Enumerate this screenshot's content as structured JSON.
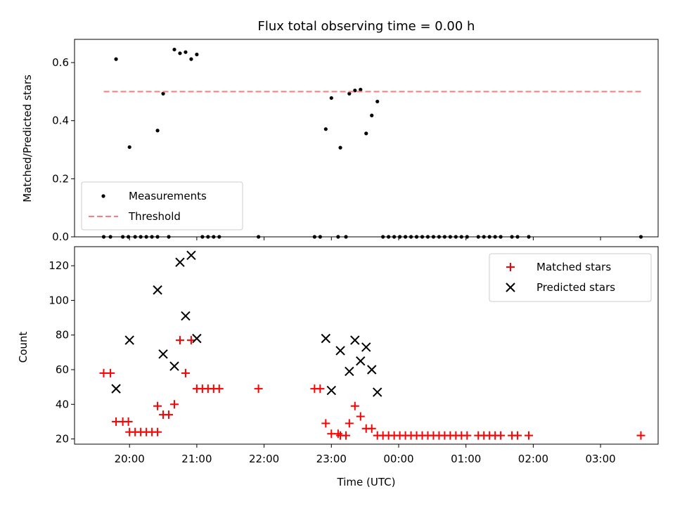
{
  "chart_data": [
    {
      "type": "scatter",
      "title": "Flux total observing time = 0.00 h",
      "xlabel": "",
      "ylabel": "Matched/Predicted stars",
      "ylim": [
        0,
        0.68
      ],
      "yticks": [
        0.0,
        0.2,
        0.4,
        0.6
      ],
      "ytick_labels": [
        "0.0",
        "0.2",
        "0.4",
        "0.6"
      ],
      "grid": false,
      "legend_position": "lower-left",
      "series": [
        {
          "name": "Measurements",
          "marker": "dot",
          "color": "#000000",
          "points": [
            [
              "19:37",
              0
            ],
            [
              "19:43",
              0
            ],
            [
              "19:48",
              0.612
            ],
            [
              "19:54",
              0
            ],
            [
              "19:59",
              0
            ],
            [
              "20:00",
              0.309
            ],
            [
              "20:05",
              0
            ],
            [
              "20:10",
              0
            ],
            [
              "20:15",
              0
            ],
            [
              "20:20",
              0
            ],
            [
              "20:25",
              0
            ],
            [
              "20:25",
              0.366
            ],
            [
              "20:30",
              0.493
            ],
            [
              "20:35",
              0
            ],
            [
              "20:40",
              0.645
            ],
            [
              "20:45",
              0.632
            ],
            [
              "20:50",
              0.636
            ],
            [
              "20:55",
              0.612
            ],
            [
              "21:00",
              0.628
            ],
            [
              "21:05",
              0
            ],
            [
              "21:10",
              0
            ],
            [
              "21:15",
              0
            ],
            [
              "21:20",
              0
            ],
            [
              "21:55",
              0
            ],
            [
              "22:45",
              0
            ],
            [
              "22:50",
              0
            ],
            [
              "22:55",
              0.371
            ],
            [
              "23:00",
              0.478
            ],
            [
              "23:06",
              0
            ],
            [
              "23:08",
              0.307
            ],
            [
              "23:13",
              0
            ],
            [
              "23:16",
              0.493
            ],
            [
              "23:21",
              0.504
            ],
            [
              "23:26",
              0.507
            ],
            [
              "23:31",
              0.356
            ],
            [
              "23:36",
              0.418
            ],
            [
              "23:41",
              0.466
            ],
            [
              "23:46",
              0
            ],
            [
              "23:51",
              0
            ],
            [
              "23:56",
              0
            ],
            [
              "00:01",
              0
            ],
            [
              "00:06",
              0
            ],
            [
              "00:11",
              0
            ],
            [
              "00:16",
              0
            ],
            [
              "00:21",
              0
            ],
            [
              "00:26",
              0
            ],
            [
              "00:31",
              0
            ],
            [
              "00:36",
              0
            ],
            [
              "00:41",
              0
            ],
            [
              "00:46",
              0
            ],
            [
              "00:51",
              0
            ],
            [
              "00:56",
              0
            ],
            [
              "01:01",
              0
            ],
            [
              "01:11",
              0
            ],
            [
              "01:16",
              0
            ],
            [
              "01:21",
              0
            ],
            [
              "01:26",
              0
            ],
            [
              "01:31",
              0
            ],
            [
              "01:41",
              0
            ],
            [
              "01:46",
              0
            ],
            [
              "01:56",
              0
            ],
            [
              "03:36",
              0
            ]
          ]
        },
        {
          "name": "Threshold",
          "style": "dashed",
          "color": "#ff7a7a",
          "value": 0.5,
          "x_range": [
            "19:37",
            "03:36"
          ]
        }
      ]
    },
    {
      "type": "scatter",
      "title": "",
      "xlabel": "Time (UTC)",
      "ylabel": "Count",
      "ylim": [
        17,
        131
      ],
      "yticks": [
        20,
        40,
        60,
        80,
        100,
        120
      ],
      "ytick_labels": [
        "20",
        "40",
        "60",
        "80",
        "100",
        "120"
      ],
      "xticks": [
        "20:00",
        "21:00",
        "22:00",
        "23:00",
        "00:00",
        "01:00",
        "02:00",
        "03:00"
      ],
      "grid": false,
      "legend_position": "top-right",
      "series": [
        {
          "name": "Matched stars",
          "marker": "plus",
          "color": "#ff0000",
          "points": [
            [
              "19:37",
              58
            ],
            [
              "19:43",
              58
            ],
            [
              "19:48",
              30
            ],
            [
              "19:54",
              30
            ],
            [
              "19:59",
              30
            ],
            [
              "20:00",
              24
            ],
            [
              "20:05",
              24
            ],
            [
              "20:10",
              24
            ],
            [
              "20:15",
              24
            ],
            [
              "20:20",
              24
            ],
            [
              "20:25",
              24
            ],
            [
              "20:25",
              39
            ],
            [
              "20:30",
              34
            ],
            [
              "20:35",
              34
            ],
            [
              "20:40",
              40
            ],
            [
              "20:45",
              77
            ],
            [
              "20:50",
              58
            ],
            [
              "20:55",
              77
            ],
            [
              "21:00",
              49
            ],
            [
              "21:05",
              49
            ],
            [
              "21:10",
              49
            ],
            [
              "21:15",
              49
            ],
            [
              "21:20",
              49
            ],
            [
              "21:55",
              49
            ],
            [
              "22:45",
              49
            ],
            [
              "22:50",
              49
            ],
            [
              "22:55",
              29
            ],
            [
              "23:00",
              23
            ],
            [
              "23:06",
              23
            ],
            [
              "23:08",
              22
            ],
            [
              "23:13",
              22
            ],
            [
              "23:16",
              29
            ],
            [
              "23:21",
              39
            ],
            [
              "23:26",
              33
            ],
            [
              "23:31",
              26
            ],
            [
              "23:36",
              26
            ],
            [
              "23:41",
              22
            ],
            [
              "23:46",
              22
            ],
            [
              "23:51",
              22
            ],
            [
              "23:56",
              22
            ],
            [
              "00:01",
              22
            ],
            [
              "00:06",
              22
            ],
            [
              "00:11",
              22
            ],
            [
              "00:16",
              22
            ],
            [
              "00:21",
              22
            ],
            [
              "00:26",
              22
            ],
            [
              "00:31",
              22
            ],
            [
              "00:36",
              22
            ],
            [
              "00:41",
              22
            ],
            [
              "00:46",
              22
            ],
            [
              "00:51",
              22
            ],
            [
              "00:56",
              22
            ],
            [
              "01:01",
              22
            ],
            [
              "01:11",
              22
            ],
            [
              "01:16",
              22
            ],
            [
              "01:21",
              22
            ],
            [
              "01:26",
              22
            ],
            [
              "01:31",
              22
            ],
            [
              "01:41",
              22
            ],
            [
              "01:46",
              22
            ],
            [
              "01:56",
              22
            ],
            [
              "03:36",
              22
            ]
          ]
        },
        {
          "name": "Predicted stars",
          "marker": "x",
          "color": "#000000",
          "points": [
            [
              "19:48",
              49
            ],
            [
              "20:00",
              77
            ],
            [
              "20:25",
              106
            ],
            [
              "20:30",
              69
            ],
            [
              "20:40",
              62
            ],
            [
              "20:45",
              122
            ],
            [
              "20:50",
              91
            ],
            [
              "20:55",
              126
            ],
            [
              "21:00",
              78
            ],
            [
              "22:55",
              78
            ],
            [
              "23:00",
              48
            ],
            [
              "23:08",
              71
            ],
            [
              "23:16",
              59
            ],
            [
              "23:21",
              77
            ],
            [
              "23:26",
              65
            ],
            [
              "23:31",
              73
            ],
            [
              "23:36",
              60
            ],
            [
              "23:41",
              47
            ]
          ]
        }
      ]
    }
  ]
}
